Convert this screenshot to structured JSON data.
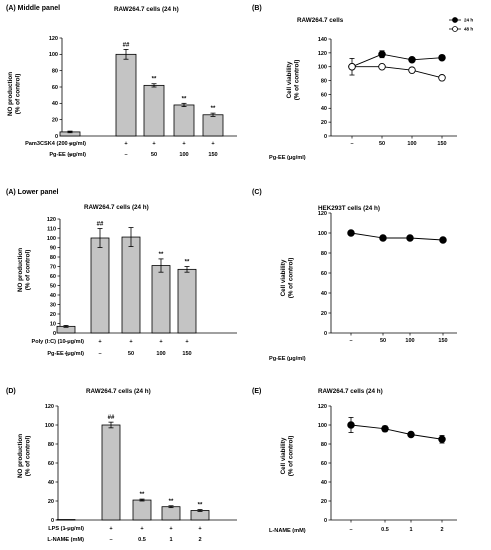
{
  "chart_data": [
    {
      "id": "A1",
      "type": "bar",
      "panel_label": "(A) Middle panel",
      "title": "RAW264.7 cells (24 h)",
      "ylabel": [
        "NO production",
        "(% of control)"
      ],
      "ylim": [
        0,
        120
      ],
      "yticks": [
        0,
        20,
        40,
        60,
        80,
        100,
        120
      ],
      "values": [
        5,
        100,
        62,
        38,
        26
      ],
      "errors": [
        1,
        6,
        2,
        2,
        2
      ],
      "significance": [
        "",
        "##",
        "**",
        "**",
        "**"
      ],
      "treatment_rows": [
        {
          "label": "Pam3CSK4 (200 μg/ml)",
          "values": [
            "–",
            "+",
            "+",
            "+",
            "+"
          ]
        },
        {
          "label": "Pg-EE (μg/ml)",
          "values": [
            "–",
            "–",
            "50",
            "100",
            "150"
          ]
        }
      ]
    },
    {
      "id": "B",
      "type": "line",
      "panel_label": "(B)",
      "title": "RAW264.7 cells",
      "ylabel": [
        "Cell viability",
        "(% of control)"
      ],
      "ylim": [
        0,
        140
      ],
      "yticks": [
        0,
        20,
        40,
        60,
        80,
        100,
        120,
        140
      ],
      "categories": [
        "–",
        "50",
        "100",
        "150"
      ],
      "xaxis_label": "Pg-EE (μg/ml)",
      "legend": {
        "placement": "top-right"
      },
      "series": [
        {
          "name": "24 h",
          "marker": "filled",
          "values": [
            100,
            118,
            110,
            113
          ],
          "errors": [
            12,
            5,
            2,
            2
          ]
        },
        {
          "name": "48 h",
          "marker": "open",
          "values": [
            100,
            100,
            95,
            84
          ],
          "errors": [
            0,
            2,
            2,
            2
          ]
        }
      ]
    },
    {
      "id": "A2",
      "type": "bar",
      "panel_label": "(A) Lower panel",
      "title": "RAW264.7 cells (24 h)",
      "ylabel": [
        "NO production",
        "(% of control)"
      ],
      "ylim": [
        0,
        120
      ],
      "yticks": [
        0,
        10,
        20,
        30,
        40,
        50,
        60,
        70,
        80,
        90,
        100,
        110,
        120
      ],
      "values": [
        7,
        100,
        101,
        71,
        67
      ],
      "errors": [
        1,
        10,
        10,
        7,
        3
      ],
      "significance": [
        "",
        "##",
        "",
        "**",
        "**"
      ],
      "treatment_rows": [
        {
          "label": "Poly (I:C) (10 μg/ml)",
          "values": [
            "–",
            "+",
            "+",
            "+",
            "+"
          ]
        },
        {
          "label": "Pg-EE (μg/ml)",
          "values": [
            "–",
            "–",
            "50",
            "100",
            "150"
          ]
        }
      ]
    },
    {
      "id": "C",
      "type": "line",
      "panel_label": "(C)",
      "title": "HEK293T cells (24 h)",
      "ylabel": [
        "Cell viability",
        "(% of control)"
      ],
      "ylim": [
        0,
        120
      ],
      "yticks": [
        0,
        20,
        40,
        60,
        80,
        100,
        120
      ],
      "categories": [
        "–",
        "50",
        "100",
        "150"
      ],
      "xaxis_label": "Pg-EE (μg/ml)",
      "series": [
        {
          "marker": "filled",
          "values": [
            100,
            95,
            95,
            93
          ],
          "errors": [
            0,
            1,
            1,
            1
          ]
        }
      ]
    },
    {
      "id": "D",
      "type": "bar",
      "panel_label": "(D)",
      "title": "RAW264.7 cells (24 h)",
      "ylabel": [
        "NO production",
        "(% of control)"
      ],
      "ylim": [
        0,
        120
      ],
      "yticks": [
        0,
        20,
        40,
        60,
        80,
        100,
        120
      ],
      "values": [
        0.5,
        100,
        21,
        14,
        10
      ],
      "errors": [
        0,
        3,
        1,
        1,
        1
      ],
      "significance": [
        "",
        "##",
        "**",
        "**",
        "**"
      ],
      "treatment_rows": [
        {
          "label": "LPS (1 μg/ml)",
          "values": [
            "–",
            "+",
            "+",
            "+",
            "+"
          ]
        },
        {
          "label": "L-NAME (mM)",
          "values": [
            "–",
            "–",
            "0.5",
            "1",
            "2"
          ]
        }
      ]
    },
    {
      "id": "E",
      "type": "line",
      "panel_label": "(E)",
      "title": "RAW264.7 cells (24 h)",
      "ylabel": [
        "Cell viability",
        "(% of control)"
      ],
      "ylim": [
        0,
        120
      ],
      "yticks": [
        0,
        20,
        40,
        60,
        80,
        100,
        120
      ],
      "categories": [
        "–",
        "0.5",
        "1",
        "2"
      ],
      "xaxis_label": "L-NAME (mM)",
      "series": [
        {
          "marker": "filled",
          "values": [
            100,
            96,
            90,
            85
          ],
          "errors": [
            8,
            3,
            2,
            4
          ]
        }
      ]
    }
  ]
}
